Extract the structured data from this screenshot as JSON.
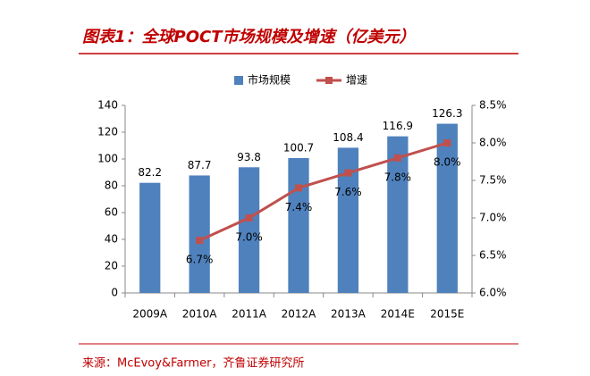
{
  "title": "图表1：全球POCT市场规模及增速（亿美元）",
  "source": "来源：McEvoy&Farmer，齐鲁证券研究所",
  "chart_data": {
    "type": "bar-line",
    "categories": [
      "2009A",
      "2010A",
      "2011A",
      "2012A",
      "2013A",
      "2014E",
      "2015E"
    ],
    "series": [
      {
        "name": "市场规模",
        "type": "bar",
        "color": "#4f81bd",
        "values": [
          82.2,
          87.7,
          93.8,
          100.7,
          108.4,
          116.9,
          126.3
        ]
      },
      {
        "name": "增速",
        "type": "line",
        "axis": "y2",
        "color": "#c0504d",
        "values": [
          null,
          6.7,
          7.0,
          7.4,
          7.6,
          7.8,
          8.0
        ],
        "value_labels": [
          null,
          "6.7%",
          "7.0%",
          "7.4%",
          "7.6%",
          "7.8%",
          "8.0%"
        ]
      }
    ],
    "ylim": [
      0,
      140
    ],
    "yticks": [
      0,
      20,
      40,
      60,
      80,
      100,
      120,
      140
    ],
    "y2lim": [
      6,
      8.5
    ],
    "y2ticks": [
      {
        "value": 6,
        "label": "6.0%"
      },
      {
        "value": 6.5,
        "label": "6.5%"
      },
      {
        "value": 7,
        "label": "7.0%"
      },
      {
        "value": 7.5,
        "label": "7.5%"
      },
      {
        "value": 8,
        "label": "8.0%"
      },
      {
        "value": 8.5,
        "label": "8.5%"
      }
    ],
    "legend": "top",
    "grid": false
  }
}
